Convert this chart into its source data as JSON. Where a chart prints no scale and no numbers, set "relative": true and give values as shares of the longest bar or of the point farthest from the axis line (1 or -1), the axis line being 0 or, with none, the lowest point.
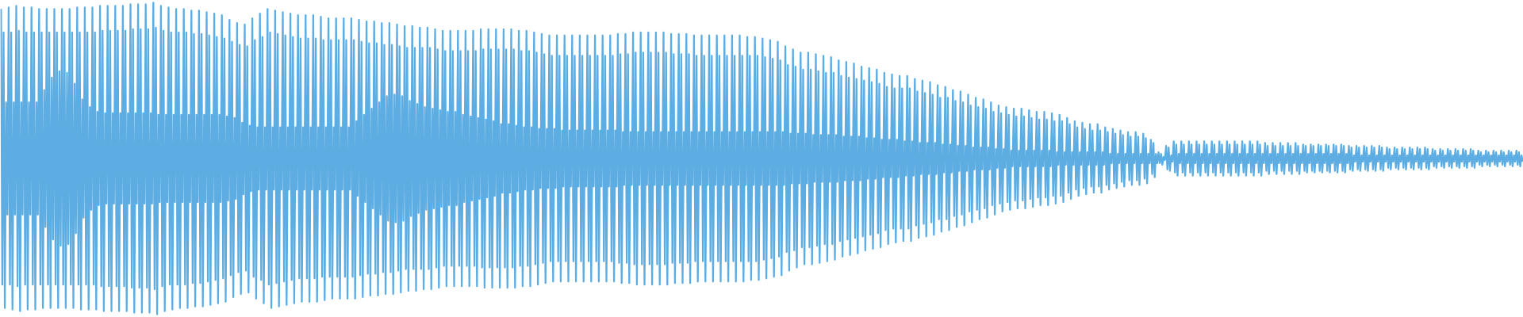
{
  "chart_data": {
    "type": "line",
    "relative": true,
    "categories": [
      null,
      null,
      null,
      null,
      null,
      null,
      null,
      null,
      null,
      null,
      null,
      null,
      null,
      null,
      null,
      null,
      null,
      null,
      null,
      null,
      null,
      null,
      null,
      null,
      null,
      null,
      null,
      null,
      null,
      null,
      null,
      null,
      null,
      null,
      null,
      null,
      null,
      null,
      null,
      null,
      null,
      null,
      null,
      null,
      null,
      null,
      null,
      null,
      null,
      null,
      null,
      null,
      null,
      null,
      null,
      null,
      null,
      null,
      null,
      null,
      null,
      null,
      null,
      null,
      null,
      null,
      null,
      null,
      null,
      null,
      null,
      null,
      null,
      null,
      null,
      null,
      null,
      null,
      null,
      null,
      null,
      null,
      null,
      null,
      null,
      null,
      null,
      null,
      null,
      null,
      null,
      null,
      null,
      null,
      null,
      null,
      null,
      null,
      null,
      null,
      null,
      null,
      null,
      null,
      null,
      null,
      null,
      null,
      null,
      null,
      null,
      null,
      null,
      null,
      null,
      null,
      null,
      null,
      null,
      null,
      null,
      null,
      null,
      null,
      null,
      null,
      null,
      null,
      null,
      null,
      null,
      null,
      null,
      null,
      null,
      null,
      null,
      null,
      null,
      null,
      null,
      null,
      null,
      null,
      null,
      null,
      null,
      null,
      null,
      null,
      null,
      null,
      null,
      null,
      null,
      null,
      null,
      null,
      null,
      null,
      null,
      null,
      null,
      null,
      null,
      null,
      null,
      null,
      null,
      null,
      null,
      null,
      null,
      null,
      null,
      null,
      null,
      null,
      null,
      null,
      null,
      null,
      null,
      null,
      null,
      null,
      null,
      null,
      null,
      null,
      null,
      null,
      null,
      null,
      null,
      null,
      null,
      null,
      null,
      null,
      null,
      null,
      null,
      null,
      null,
      null,
      null,
      null,
      null,
      null,
      null,
      null,
      null,
      null,
      null,
      null,
      null,
      null,
      null,
      null,
      null,
      null,
      null,
      null,
      null,
      null,
      null,
      null,
      null,
      null,
      null,
      null,
      null,
      null,
      null,
      null,
      null,
      null,
      null,
      null,
      null,
      null,
      null,
      null,
      null,
      null,
      null,
      null,
      null,
      null,
      null,
      null,
      null,
      null,
      null,
      null,
      null,
      null,
      null,
      null,
      null,
      null,
      null,
      null,
      null,
      null,
      null,
      null,
      null,
      null,
      null,
      null,
      null,
      null,
      null,
      null,
      null,
      null,
      null,
      null,
      null,
      null,
      null,
      null,
      null,
      null,
      null,
      null,
      null,
      null,
      null,
      null,
      null,
      null,
      null,
      null,
      null,
      null,
      null,
      null,
      null,
      null,
      null,
      null,
      null,
      null,
      null,
      null,
      null,
      null,
      null,
      null,
      null,
      null,
      null,
      null,
      null,
      null,
      null,
      null,
      null,
      null,
      null,
      null,
      null,
      null,
      null,
      null,
      null,
      null,
      null,
      null,
      null,
      null,
      null,
      null,
      null,
      null,
      null,
      null,
      null,
      null,
      null,
      null,
      null,
      null,
      null,
      null,
      null,
      null,
      null,
      null,
      null,
      null,
      null,
      null,
      null,
      null,
      null,
      null,
      null,
      null,
      null,
      null,
      null,
      null,
      null,
      null,
      null,
      null,
      null,
      null,
      null,
      null,
      null,
      null,
      null,
      null,
      null,
      null,
      null,
      null,
      null,
      null,
      null,
      null,
      null,
      null,
      null,
      null,
      null,
      null,
      null,
      null,
      null,
      null,
      null,
      null,
      null,
      null,
      null,
      null,
      null,
      null,
      null,
      null,
      null,
      null,
      null,
      null,
      null,
      null,
      null,
      null,
      null,
      null,
      null,
      null,
      null,
      null,
      null,
      null,
      null,
      null,
      null,
      null,
      null,
      null,
      null,
      null,
      null,
      null,
      null,
      null,
      null,
      null,
      null,
      null,
      null,
      null,
      null,
      null,
      null,
      null,
      null,
      null,
      null,
      null,
      null,
      null,
      null,
      null,
      null,
      null,
      null,
      null,
      null,
      null,
      null,
      null,
      null,
      null,
      null,
      null,
      null,
      null,
      null,
      null,
      null,
      null,
      null,
      null,
      null,
      null,
      null,
      null,
      null,
      null,
      null,
      null,
      null,
      null,
      null,
      null,
      null,
      null,
      null,
      null,
      null,
      null,
      null,
      null,
      null,
      null,
      null,
      null,
      null,
      null,
      null,
      null,
      null,
      null,
      null,
      null,
      null,
      null,
      null,
      null,
      null,
      null,
      null,
      null,
      null,
      null,
      null,
      null,
      null,
      null,
      null,
      null,
      null,
      null,
      null,
      null,
      null,
      null,
      null,
      null,
      null,
      null,
      null,
      null,
      null,
      null,
      null,
      null,
      null,
      null,
      null,
      null,
      null,
      null,
      null,
      null,
      null,
      null,
      null,
      null,
      null,
      null,
      null,
      null,
      null,
      null,
      null,
      null,
      null,
      null,
      null,
      null,
      null,
      null,
      null,
      null,
      null,
      null,
      null,
      null,
      null,
      null,
      null,
      null,
      null,
      null,
      null,
      null,
      null,
      null,
      null,
      null,
      null,
      null,
      null,
      null,
      null,
      null,
      null,
      null,
      null,
      null,
      null,
      null,
      null,
      null,
      null,
      null,
      null,
      null,
      null,
      null,
      null,
      null,
      null,
      null,
      null,
      null,
      null,
      null,
      null,
      null,
      null,
      null,
      null,
      null,
      null,
      null,
      null,
      null,
      null,
      null,
      null,
      null,
      null,
      null,
      null,
      null,
      null,
      null,
      null,
      null,
      null,
      null,
      null,
      null,
      null,
      null,
      null,
      null,
      null,
      null,
      null,
      null,
      null,
      null,
      null,
      null,
      null,
      null,
      null,
      null,
      null,
      null,
      null,
      null,
      null,
      null,
      null,
      null,
      null,
      null,
      null,
      null,
      null,
      null,
      null,
      null,
      null,
      null,
      null,
      null,
      null,
      null,
      null,
      null,
      null,
      null,
      null,
      null,
      null,
      null,
      null,
      null,
      null,
      null,
      null,
      null,
      null,
      null,
      null,
      null,
      null,
      null,
      null,
      null,
      null,
      null,
      null,
      null,
      null,
      null,
      null,
      null,
      null,
      null,
      null,
      null,
      null,
      null,
      null,
      null,
      null,
      null,
      null,
      null,
      null,
      null,
      null,
      null,
      null,
      null,
      null,
      null,
      null,
      null,
      null,
      null,
      null,
      null,
      null,
      null,
      null,
      null,
      null,
      null,
      null,
      null,
      null,
      null,
      null,
      null,
      null,
      null,
      null,
      null,
      null,
      null,
      null,
      null,
      null,
      null,
      null,
      null,
      null,
      null,
      null,
      null,
      null,
      null,
      null,
      null,
      null,
      null,
      null,
      null,
      null,
      null,
      null,
      null,
      null,
      null,
      null,
      null,
      null,
      null,
      null,
      null,
      null,
      null,
      null,
      null,
      null,
      null,
      null,
      null,
      null,
      null,
      null,
      null,
      null,
      null,
      null,
      null,
      null,
      null,
      null,
      null,
      null,
      null,
      null,
      null,
      null,
      null,
      null,
      null,
      null,
      null,
      null,
      null,
      null,
      null,
      null,
      null,
      null,
      null,
      null,
      null,
      null,
      null,
      null,
      null,
      null,
      null,
      null,
      null,
      null,
      null,
      null,
      null,
      null,
      null,
      null,
      null,
      null,
      null,
      null,
      null,
      null,
      null,
      null,
      null,
      null,
      null,
      null,
      null,
      null,
      null,
      null,
      null,
      null,
      null,
      null,
      null,
      null,
      null,
      null,
      null,
      null,
      null,
      null,
      null,
      null,
      null,
      null,
      null,
      null,
      null,
      null,
      null,
      null,
      null,
      null,
      null,
      null,
      null,
      null,
      null,
      null,
      null,
      null,
      null,
      null,
      null,
      null,
      null,
      null,
      null,
      null,
      null,
      null,
      null,
      null,
      null,
      null,
      null,
      null,
      null,
      null,
      null,
      null,
      null,
      null,
      null,
      null,
      null,
      null,
      null,
      null,
      null,
      null,
      null,
      null,
      null,
      null,
      null,
      null,
      null,
      null,
      null,
      null,
      null,
      null,
      null,
      null,
      null,
      null,
      null,
      null,
      null,
      null,
      null,
      null,
      null,
      null,
      null,
      null,
      null,
      null,
      null,
      null,
      null,
      null,
      null,
      null,
      null,
      null,
      null,
      null,
      null,
      null,
      null,
      null,
      null,
      null,
      null,
      null,
      null,
      null,
      null,
      null,
      null,
      null,
      null,
      null,
      null,
      null,
      null,
      null,
      null,
      null,
      null,
      null,
      null,
      null,
      null,
      null,
      null,
      null,
      null,
      null,
      null,
      null,
      null,
      null,
      null,
      null,
      null,
      null,
      null,
      null,
      null,
      null,
      null,
      null,
      null,
      null,
      null,
      null,
      null,
      null,
      null,
      null,
      null,
      null,
      null,
      null,
      null,
      null,
      null,
      null,
      null,
      null,
      null,
      null,
      null,
      null,
      null,
      null,
      null,
      null,
      null,
      null,
      null,
      null,
      null,
      null,
      null,
      null,
      null,
      null,
      null,
      null,
      null,
      null,
      null,
      null,
      null,
      null,
      null,
      null,
      null,
      null,
      null,
      null,
      null,
      null,
      null,
      null,
      null,
      null,
      null,
      null,
      null,
      null,
      null,
      null,
      null,
      null,
      null,
      null,
      null,
      null,
      null,
      null,
      null,
      null,
      null,
      null,
      null,
      null,
      null,
      null,
      null,
      null,
      null,
      null,
      null,
      null,
      null,
      null,
      null,
      null,
      null,
      null,
      null,
      null,
      null,
      null,
      null,
      null,
      null,
      null,
      null,
      null,
      null,
      null,
      null,
      null,
      null,
      null,
      null,
      null,
      null,
      null,
      null,
      null,
      null,
      null,
      null,
      null,
      null,
      null,
      null,
      null,
      null,
      null,
      null,
      null,
      null,
      null,
      null,
      null,
      null,
      null,
      null,
      null,
      null,
      null,
      null,
      null,
      null,
      null,
      null,
      null,
      null,
      null,
      null,
      null,
      null,
      null,
      null,
      null,
      null,
      null,
      null,
      null,
      null,
      null,
      null,
      null,
      null,
      null,
      null,
      null,
      null,
      null,
      null,
      null,
      null,
      null,
      null,
      null,
      null,
      null,
      null,
      null,
      null,
      null,
      null,
      null,
      null,
      null,
      null,
      null,
      null,
      null,
      null,
      null,
      null,
      null,
      null,
      null,
      null,
      null,
      null,
      null,
      null,
      null,
      null,
      null,
      null,
      null,
      null,
      null,
      null,
      null,
      null,
      null,
      null,
      null,
      null
    ],
    "series": [
      {
        "color": "#5dade2",
        "values": [
          0.98,
          0.095,
          0.905,
          0.02,
          0.68,
          0.32,
          0.985,
          0.095,
          0.905,
          0.015,
          0.68,
          0.32,
          0.99,
          0.09,
          0.91,
          0.01,
          0.68,
          0.32,
          0.985,
          0.095,
          0.905,
          0.015,
          0.68,
          0.32,
          0.985,
          0.095,
          0.905,
          0.015,
          0.68,
          0.32,
          0.98,
          0.095,
          0.905,
          0.02,
          0.72,
          0.28,
          0.98,
          0.095,
          0.905,
          0.02,
          0.76,
          0.24,
          0.98,
          0.095,
          0.905,
          0.02,
          0.78,
          0.22,
          0.98,
          0.095,
          0.905,
          0.02,
          0.775,
          0.225,
          0.98,
          0.095,
          0.905,
          0.02,
          0.74,
          0.26,
          0.985,
          0.095,
          0.905,
          0.015,
          0.69,
          0.31,
          0.985,
          0.095,
          0.905,
          0.015,
          0.665,
          0.335,
          0.985,
          0.095,
          0.905,
          0.015,
          0.65,
          0.35,
          0.99,
          0.09,
          0.91,
          0.01,
          0.645,
          0.355,
          0.99,
          0.09,
          0.91,
          0.01,
          0.645,
          0.355,
          0.99,
          0.09,
          0.91,
          0.01,
          0.645,
          0.355,
          0.99,
          0.09,
          0.91,
          0.01,
          0.645,
          0.355,
          0.995,
          0.085,
          0.915,
          0.005,
          0.645,
          0.355,
          0.995,
          0.085,
          0.915,
          0.005,
          0.645,
          0.355,
          0.995,
          0.085,
          0.915,
          0.005,
          0.645,
          0.355,
          1,
          0.08,
          0.92,
          0,
          0.64,
          0.36,
          0.99,
          0.09,
          0.91,
          0.01,
          0.64,
          0.36,
          0.985,
          0.095,
          0.905,
          0.015,
          0.64,
          0.36,
          0.98,
          0.095,
          0.905,
          0.02,
          0.64,
          0.36,
          0.98,
          0.095,
          0.905,
          0.02,
          0.64,
          0.36,
          0.975,
          0.1,
          0.9,
          0.025,
          0.64,
          0.36,
          0.975,
          0.1,
          0.9,
          0.025,
          0.64,
          0.36,
          0.97,
          0.105,
          0.895,
          0.03,
          0.64,
          0.36,
          0.965,
          0.11,
          0.89,
          0.035,
          0.64,
          0.36,
          0.96,
          0.115,
          0.885,
          0.04,
          0.635,
          0.365,
          0.945,
          0.125,
          0.875,
          0.055,
          0.63,
          0.37,
          0.935,
          0.135,
          0.865,
          0.065,
          0.615,
          0.385,
          0.93,
          0.14,
          0.86,
          0.07,
          0.605,
          0.395,
          0.95,
          0.12,
          0.88,
          0.05,
          0.6,
          0.4,
          0.965,
          0.11,
          0.89,
          0.035,
          0.6,
          0.4,
          0.98,
          0.095,
          0.905,
          0.02,
          0.6,
          0.4,
          0.975,
          0.1,
          0.9,
          0.025,
          0.6,
          0.4,
          0.97,
          0.105,
          0.895,
          0.03,
          0.6,
          0.4,
          0.965,
          0.11,
          0.89,
          0.035,
          0.6,
          0.4,
          0.96,
          0.115,
          0.885,
          0.04,
          0.6,
          0.4,
          0.96,
          0.115,
          0.885,
          0.04,
          0.6,
          0.4,
          0.96,
          0.115,
          0.885,
          0.04,
          0.6,
          0.4,
          0.955,
          0.12,
          0.88,
          0.045,
          0.6,
          0.4,
          0.95,
          0.12,
          0.88,
          0.05,
          0.6,
          0.4,
          0.95,
          0.12,
          0.88,
          0.05,
          0.6,
          0.4,
          0.95,
          0.12,
          0.88,
          0.05,
          0.6,
          0.4,
          0.95,
          0.12,
          0.88,
          0.05,
          0.62,
          0.38,
          0.945,
          0.125,
          0.875,
          0.055,
          0.64,
          0.36,
          0.94,
          0.13,
          0.87,
          0.06,
          0.66,
          0.34,
          0.94,
          0.13,
          0.87,
          0.06,
          0.68,
          0.32,
          0.935,
          0.135,
          0.865,
          0.065,
          0.7,
          0.3,
          0.935,
          0.135,
          0.865,
          0.065,
          0.705,
          0.295,
          0.93,
          0.14,
          0.86,
          0.07,
          0.7,
          0.3,
          0.925,
          0.145,
          0.855,
          0.075,
          0.685,
          0.315,
          0.925,
          0.145,
          0.855,
          0.075,
          0.675,
          0.325,
          0.92,
          0.145,
          0.855,
          0.08,
          0.665,
          0.335,
          0.92,
          0.145,
          0.855,
          0.08,
          0.66,
          0.34,
          0.915,
          0.15,
          0.85,
          0.085,
          0.655,
          0.345,
          0.91,
          0.155,
          0.845,
          0.09,
          0.65,
          0.35,
          0.91,
          0.155,
          0.845,
          0.09,
          0.65,
          0.35,
          0.91,
          0.155,
          0.845,
          0.09,
          0.64,
          0.36,
          0.91,
          0.155,
          0.845,
          0.09,
          0.635,
          0.365,
          0.91,
          0.155,
          0.845,
          0.09,
          0.63,
          0.37,
          0.915,
          0.15,
          0.85,
          0.085,
          0.625,
          0.375,
          0.915,
          0.15,
          0.85,
          0.085,
          0.62,
          0.38,
          0.915,
          0.15,
          0.85,
          0.085,
          0.61,
          0.39,
          0.915,
          0.15,
          0.85,
          0.085,
          0.61,
          0.39,
          0.915,
          0.15,
          0.85,
          0.085,
          0.605,
          0.395,
          0.91,
          0.155,
          0.845,
          0.09,
          0.6,
          0.4,
          0.91,
          0.155,
          0.845,
          0.09,
          0.6,
          0.4,
          0.905,
          0.16,
          0.84,
          0.095,
          0.595,
          0.405,
          0.9,
          0.165,
          0.835,
          0.1,
          0.595,
          0.405,
          0.895,
          0.17,
          0.83,
          0.105,
          0.595,
          0.405,
          0.895,
          0.17,
          0.83,
          0.105,
          0.59,
          0.41,
          0.895,
          0.17,
          0.83,
          0.105,
          0.59,
          0.41,
          0.895,
          0.17,
          0.83,
          0.105,
          0.59,
          0.41,
          0.895,
          0.17,
          0.83,
          0.105,
          0.59,
          0.41,
          0.895,
          0.17,
          0.83,
          0.105,
          0.59,
          0.41,
          0.895,
          0.17,
          0.83,
          0.105,
          0.59,
          0.41,
          0.895,
          0.17,
          0.83,
          0.105,
          0.59,
          0.41,
          0.895,
          0.17,
          0.83,
          0.105,
          0.59,
          0.41,
          0.9,
          0.165,
          0.835,
          0.1,
          0.585,
          0.415,
          0.9,
          0.165,
          0.835,
          0.1,
          0.585,
          0.415,
          0.905,
          0.16,
          0.84,
          0.095,
          0.585,
          0.415,
          0.905,
          0.16,
          0.84,
          0.095,
          0.585,
          0.415,
          0.905,
          0.16,
          0.84,
          0.095,
          0.585,
          0.415,
          0.905,
          0.16,
          0.84,
          0.095,
          0.585,
          0.415,
          0.905,
          0.16,
          0.84,
          0.095,
          0.585,
          0.415,
          0.9,
          0.165,
          0.835,
          0.1,
          0.585,
          0.415,
          0.9,
          0.165,
          0.835,
          0.1,
          0.585,
          0.415,
          0.9,
          0.165,
          0.835,
          0.1,
          0.585,
          0.415,
          0.895,
          0.17,
          0.83,
          0.105,
          0.585,
          0.415,
          0.895,
          0.17,
          0.83,
          0.105,
          0.585,
          0.415,
          0.895,
          0.17,
          0.83,
          0.105,
          0.585,
          0.415,
          0.895,
          0.17,
          0.83,
          0.105,
          0.585,
          0.415,
          0.895,
          0.17,
          0.83,
          0.105,
          0.585,
          0.415,
          0.895,
          0.17,
          0.83,
          0.105,
          0.585,
          0.415,
          0.895,
          0.17,
          0.83,
          0.105,
          0.585,
          0.415,
          0.89,
          0.17,
          0.83,
          0.11,
          0.585,
          0.415,
          0.89,
          0.17,
          0.83,
          0.11,
          0.585,
          0.415,
          0.885,
          0.175,
          0.825,
          0.115,
          0.585,
          0.415,
          0.88,
          0.18,
          0.82,
          0.12,
          0.585,
          0.415,
          0.875,
          0.185,
          0.815,
          0.125,
          0.585,
          0.415,
          0.86,
          0.2,
          0.8,
          0.14,
          0.58,
          0.42,
          0.85,
          0.205,
          0.795,
          0.15,
          0.58,
          0.42,
          0.84,
          0.215,
          0.785,
          0.16,
          0.58,
          0.42,
          0.84,
          0.215,
          0.785,
          0.16,
          0.575,
          0.425,
          0.835,
          0.22,
          0.78,
          0.165,
          0.575,
          0.425,
          0.83,
          0.225,
          0.775,
          0.17,
          0.575,
          0.425,
          0.825,
          0.225,
          0.775,
          0.175,
          0.575,
          0.425,
          0.815,
          0.235,
          0.765,
          0.185,
          0.57,
          0.43,
          0.81,
          0.24,
          0.76,
          0.19,
          0.57,
          0.43,
          0.805,
          0.245,
          0.755,
          0.195,
          0.57,
          0.43,
          0.795,
          0.25,
          0.75,
          0.205,
          0.565,
          0.435,
          0.79,
          0.255,
          0.745,
          0.21,
          0.565,
          0.435,
          0.785,
          0.26,
          0.74,
          0.215,
          0.56,
          0.44,
          0.775,
          0.27,
          0.73,
          0.225,
          0.56,
          0.44,
          0.77,
          0.275,
          0.725,
          0.23,
          0.56,
          0.44,
          0.765,
          0.275,
          0.725,
          0.235,
          0.555,
          0.445,
          0.765,
          0.275,
          0.725,
          0.235,
          0.555,
          0.445,
          0.755,
          0.285,
          0.715,
          0.245,
          0.55,
          0.45,
          0.75,
          0.29,
          0.71,
          0.25,
          0.55,
          0.45,
          0.745,
          0.295,
          0.705,
          0.255,
          0.55,
          0.45,
          0.735,
          0.305,
          0.695,
          0.265,
          0.545,
          0.455,
          0.73,
          0.305,
          0.695,
          0.27,
          0.545,
          0.455,
          0.72,
          0.315,
          0.685,
          0.28,
          0.54,
          0.46,
          0.715,
          0.32,
          0.68,
          0.285,
          0.54,
          0.46,
          0.705,
          0.33,
          0.67,
          0.295,
          0.535,
          0.465,
          0.695,
          0.335,
          0.665,
          0.305,
          0.535,
          0.465,
          0.69,
          0.34,
          0.66,
          0.31,
          0.535,
          0.465,
          0.68,
          0.35,
          0.65,
          0.32,
          0.53,
          0.47,
          0.67,
          0.355,
          0.645,
          0.33,
          0.53,
          0.47,
          0.665,
          0.36,
          0.64,
          0.335,
          0.525,
          0.475,
          0.66,
          0.365,
          0.635,
          0.34,
          0.525,
          0.475,
          0.66,
          0.365,
          0.635,
          0.34,
          0.525,
          0.475,
          0.655,
          0.37,
          0.63,
          0.345,
          0.525,
          0.475,
          0.65,
          0.375,
          0.625,
          0.35,
          0.525,
          0.475,
          0.65,
          0.375,
          0.625,
          0.35,
          0.525,
          0.475,
          0.645,
          0.38,
          0.62,
          0.355,
          0.52,
          0.48,
          0.64,
          0.38,
          0.62,
          0.36,
          0.52,
          0.48,
          0.63,
          0.39,
          0.61,
          0.37,
          0.52,
          0.48,
          0.62,
          0.4,
          0.6,
          0.38,
          0.52,
          0.48,
          0.615,
          0.405,
          0.595,
          0.385,
          0.52,
          0.48,
          0.61,
          0.41,
          0.59,
          0.39,
          0.52,
          0.48,
          0.61,
          0.41,
          0.59,
          0.39,
          0.52,
          0.48,
          0.6,
          0.415,
          0.585,
          0.4,
          0.515,
          0.485,
          0.595,
          0.42,
          0.58,
          0.405,
          0.515,
          0.485,
          0.59,
          0.425,
          0.575,
          0.41,
          0.515,
          0.485,
          0.585,
          0.43,
          0.57,
          0.415,
          0.515,
          0.485,
          0.585,
          0.43,
          0.57,
          0.415,
          0.515,
          0.485,
          0.58,
          0.435,
          0.565,
          0.42,
          0.515,
          0.485,
          0.56,
          0.45,
          0.55,
          0.44,
          0.515,
          0.485,
          0.52,
          0.485,
          0.515,
          0.48,
          0.505,
          0.495,
          0.54,
          0.465,
          0.535,
          0.46,
          0.51,
          0.49,
          0.555,
          0.455,
          0.545,
          0.445,
          0.515,
          0.485,
          0.555,
          0.455,
          0.545,
          0.445,
          0.515,
          0.485,
          0.555,
          0.455,
          0.545,
          0.445,
          0.515,
          0.485,
          0.555,
          0.455,
          0.545,
          0.445,
          0.515,
          0.485,
          0.555,
          0.455,
          0.545,
          0.445,
          0.515,
          0.485,
          0.555,
          0.455,
          0.545,
          0.445,
          0.515,
          0.485,
          0.555,
          0.455,
          0.545,
          0.445,
          0.515,
          0.485,
          0.555,
          0.455,
          0.545,
          0.445,
          0.515,
          0.485,
          0.555,
          0.455,
          0.545,
          0.445,
          0.515,
          0.485,
          0.555,
          0.455,
          0.545,
          0.445,
          0.515,
          0.485,
          0.555,
          0.455,
          0.545,
          0.445,
          0.515,
          0.485,
          0.555,
          0.455,
          0.545,
          0.445,
          0.515,
          0.485,
          0.55,
          0.46,
          0.54,
          0.45,
          0.515,
          0.485,
          0.55,
          0.46,
          0.54,
          0.45,
          0.515,
          0.485,
          0.55,
          0.46,
          0.54,
          0.45,
          0.515,
          0.485,
          0.55,
          0.46,
          0.54,
          0.45,
          0.515,
          0.485,
          0.55,
          0.46,
          0.54,
          0.45,
          0.515,
          0.485,
          0.545,
          0.46,
          0.54,
          0.455,
          0.515,
          0.485,
          0.545,
          0.46,
          0.54,
          0.455,
          0.515,
          0.485,
          0.545,
          0.46,
          0.54,
          0.455,
          0.515,
          0.485,
          0.545,
          0.46,
          0.54,
          0.455,
          0.515,
          0.485,
          0.545,
          0.46,
          0.54,
          0.455,
          0.515,
          0.485,
          0.545,
          0.46,
          0.54,
          0.455,
          0.515,
          0.485,
          0.54,
          0.465,
          0.535,
          0.46,
          0.51,
          0.49,
          0.54,
          0.465,
          0.535,
          0.46,
          0.51,
          0.49,
          0.54,
          0.465,
          0.535,
          0.46,
          0.51,
          0.49,
          0.54,
          0.465,
          0.535,
          0.46,
          0.51,
          0.49,
          0.54,
          0.465,
          0.535,
          0.46,
          0.51,
          0.49,
          0.535,
          0.47,
          0.53,
          0.465,
          0.51,
          0.49,
          0.535,
          0.47,
          0.53,
          0.465,
          0.51,
          0.49,
          0.535,
          0.47,
          0.53,
          0.465,
          0.51,
          0.49,
          0.535,
          0.47,
          0.53,
          0.465,
          0.51,
          0.49,
          0.535,
          0.47,
          0.53,
          0.465,
          0.51,
          0.49,
          0.535,
          0.47,
          0.53,
          0.465,
          0.51,
          0.49,
          0.53,
          0.475,
          0.525,
          0.47,
          0.51,
          0.49,
          0.53,
          0.475,
          0.525,
          0.47,
          0.51,
          0.49,
          0.53,
          0.475,
          0.525,
          0.47,
          0.51,
          0.49,
          0.53,
          0.475,
          0.525,
          0.47,
          0.51,
          0.49,
          0.53,
          0.475,
          0.525,
          0.47,
          0.51,
          0.49,
          0.53,
          0.475,
          0.525,
          0.47,
          0.51,
          0.49,
          0.525,
          0.48,
          0.52,
          0.475,
          0.51,
          0.49,
          0.525,
          0.48,
          0.52,
          0.475,
          0.51,
          0.49,
          0.525,
          0.48,
          0.52,
          0.475,
          0.51,
          0.49,
          0.525,
          0.48,
          0.52,
          0.475,
          0.51,
          0.49,
          0.525,
          0.48,
          0.52,
          0.475,
          0.51,
          0.49,
          0.525,
          0.48,
          0.52,
          0.475,
          0.51,
          0.49
        ]
      }
    ]
  }
}
